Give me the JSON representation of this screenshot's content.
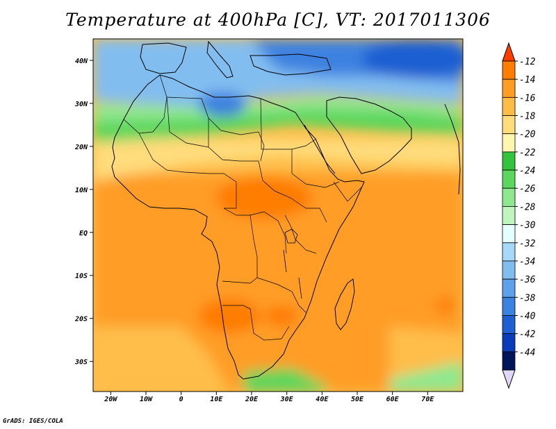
{
  "map": {
    "title": "Temperature at 400hPa [C], VT: 2017011306",
    "variable": "Temperature",
    "level": "400hPa",
    "units": "C",
    "valid_time": "2017011306",
    "lon_range": [
      -25,
      80
    ],
    "lat_range": [
      -37,
      45
    ],
    "lon_ticks": [
      {
        "value": -20,
        "label": "20W"
      },
      {
        "value": -10,
        "label": "10W"
      },
      {
        "value": 0,
        "label": "0"
      },
      {
        "value": 10,
        "label": "10E"
      },
      {
        "value": 20,
        "label": "20E"
      },
      {
        "value": 30,
        "label": "30E"
      },
      {
        "value": 40,
        "label": "40E"
      },
      {
        "value": 50,
        "label": "50E"
      },
      {
        "value": 60,
        "label": "60E"
      },
      {
        "value": 70,
        "label": "70E"
      }
    ],
    "lat_ticks": [
      {
        "value": 40,
        "label": "40N"
      },
      {
        "value": 30,
        "label": "30N"
      },
      {
        "value": 20,
        "label": "20N"
      },
      {
        "value": 10,
        "label": "10N"
      },
      {
        "value": 0,
        "label": "EQ"
      },
      {
        "value": -10,
        "label": "10S"
      },
      {
        "value": -20,
        "label": "20S"
      },
      {
        "value": -30,
        "label": "30S"
      }
    ]
  },
  "colorbar": {
    "levels": [
      "-12",
      "-14",
      "-16",
      "-18",
      "-20",
      "-22",
      "-24",
      "-26",
      "-28",
      "-30",
      "-32",
      "-34",
      "-36",
      "-38",
      "-40",
      "-42",
      "-44"
    ],
    "colors": [
      "#ff3c00",
      "#ff7d00",
      "#ff9d27",
      "#ffbd48",
      "#ffdc7c",
      "#fff7b0",
      "#33c33c",
      "#5cd65c",
      "#8fe88f",
      "#c0f5c0",
      "#e5ffff",
      "#a6d9f7",
      "#82bdf0",
      "#5fa0ea",
      "#3c82e0",
      "#1e5fd2",
      "#0a3cb9",
      "#00145a",
      "#e0d8f8"
    ]
  },
  "temperature_colors": {
    "very_warm": "#ff7d00",
    "warm": "#ff9d27",
    "mild": "#ffbd48",
    "cool": "#ffdc7c",
    "green": "#5cd65c",
    "light_green": "#8fe88f",
    "cold_blue": "#82bdf0",
    "colder_blue": "#3c82e0",
    "deep_blue": "#1e5fd2"
  },
  "credit": "GrADS: IGES/COLA"
}
